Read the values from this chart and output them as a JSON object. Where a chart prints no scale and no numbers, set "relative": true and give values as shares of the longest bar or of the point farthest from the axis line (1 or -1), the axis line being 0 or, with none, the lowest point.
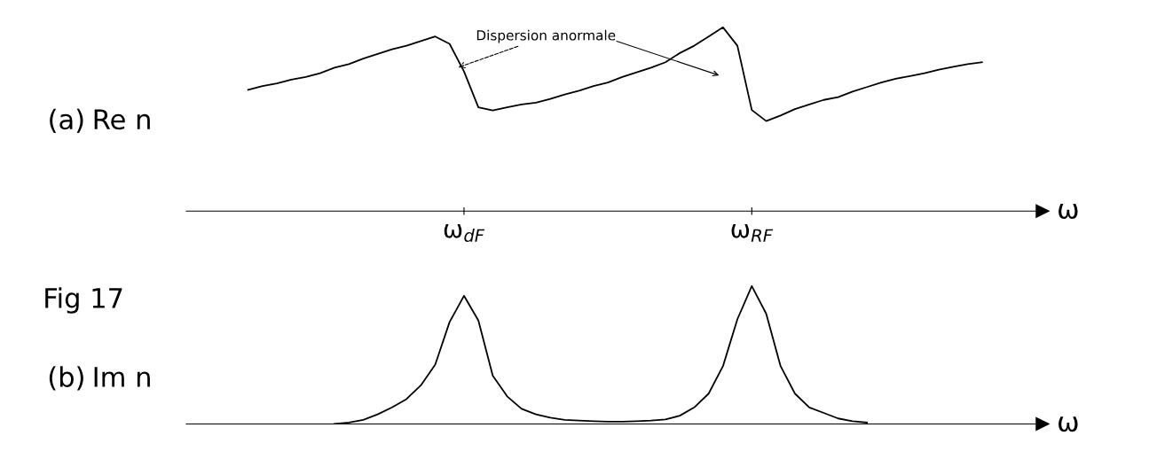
{
  "chart_data": [
    {
      "type": "line",
      "relative": true,
      "ylabel": "Re n",
      "xlabel": "ω",
      "title": "(a)",
      "annotations": [
        "Dispersion anormale",
        "Fig 17"
      ],
      "tick_labels": "x",
      "grid": false,
      "legend": false,
      "marker": "none",
      "line_style": "solid",
      "categories": [
        null,
        null,
        null,
        null,
        null,
        null,
        null,
        null,
        null,
        null,
        null,
        null,
        null,
        null,
        null,
        null,
        null,
        null,
        "ω$_{dF}$",
        null,
        null,
        null,
        null,
        null,
        null,
        null,
        null,
        null,
        null,
        null,
        null,
        null,
        null,
        null,
        null,
        null,
        null,
        null,
        "ω$_{RF}$",
        null,
        null,
        null,
        null,
        null,
        null,
        null,
        null,
        null,
        null,
        null,
        null,
        null,
        null,
        null,
        null,
        null,
        null,
        null,
        null
      ],
      "series": [
        {
          "color": "#000000",
          "values": [
            null,
            null,
            null,
            0.66,
            0.68,
            0.695,
            0.715,
            0.73,
            0.75,
            0.78,
            0.8,
            0.83,
            0.855,
            0.88,
            0.9,
            0.925,
            0.95,
            0.91,
            0.76,
            0.565,
            0.548,
            0.565,
            0.58,
            0.59,
            0.61,
            0.635,
            0.655,
            0.68,
            0.7,
            0.73,
            0.755,
            0.78,
            0.81,
            0.86,
            0.9,
            0.95,
            1.0,
            0.9,
            0.55,
            0.49,
            0.52,
            0.555,
            0.58,
            0.605,
            0.62,
            0.65,
            0.675,
            0.7,
            0.72,
            0.735,
            0.75,
            0.77,
            0.785,
            0.8,
            0.81,
            null,
            null,
            null,
            null
          ]
        }
      ]
    },
    {
      "type": "line",
      "relative": true,
      "ylabel": "Im n",
      "xlabel": "ω",
      "title": "(b)",
      "tick_labels": false,
      "grid": false,
      "legend": false,
      "marker": "none",
      "line_style": "solid",
      "categories": [
        null,
        null,
        null,
        null,
        null,
        null,
        null,
        null,
        null,
        null,
        null,
        null,
        null,
        null,
        null,
        null,
        null,
        null,
        null,
        null,
        null,
        null,
        null,
        null,
        null,
        null,
        null,
        null,
        null,
        null,
        null,
        null,
        null,
        null,
        null,
        null,
        null,
        null,
        null,
        null,
        null,
        null,
        null,
        null,
        null,
        null,
        null,
        null,
        null,
        null,
        null,
        null,
        null,
        null,
        null,
        null,
        null,
        null,
        null
      ],
      "series": [
        {
          "color": "#000000",
          "values": [
            null,
            null,
            null,
            null,
            null,
            null,
            null,
            null,
            null,
            0,
            0.01,
            0.03,
            0.07,
            0.12,
            0.18,
            0.28,
            0.43,
            0.74,
            0.93,
            0.75,
            0.35,
            0.2,
            0.11,
            0.07,
            0.045,
            0.03,
            0.025,
            0.02,
            0.016,
            0.016,
            0.02,
            0.025,
            0.033,
            0.06,
            0.12,
            0.22,
            0.42,
            0.76,
            1.0,
            0.8,
            0.42,
            0.22,
            0.12,
            0.08,
            0.04,
            0.02,
            0.01,
            null,
            null,
            null,
            null,
            null,
            null,
            null,
            null,
            null,
            null,
            null,
            null
          ]
        }
      ]
    }
  ]
}
